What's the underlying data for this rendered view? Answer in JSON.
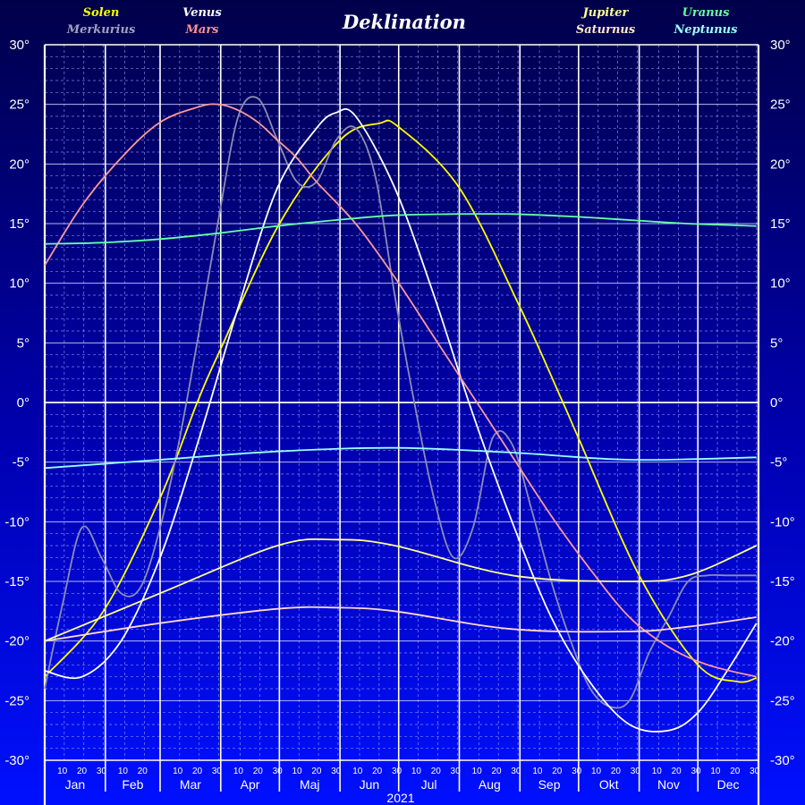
{
  "chart_data": {
    "type": "line",
    "title": "Deklination",
    "year_label": "2021",
    "ylim": [
      -30,
      30
    ],
    "y_ticks": [
      "30°",
      "25°",
      "20°",
      "15°",
      "10°",
      "5°",
      "0°",
      "-5°",
      "-10°",
      "-15°",
      "-20°",
      "-25°",
      "-30°"
    ],
    "months": [
      "Jan",
      "Feb",
      "Mar",
      "Apr",
      "Maj",
      "Jun",
      "Jul",
      "Aug",
      "Sep",
      "Okt",
      "Nov",
      "Dec"
    ],
    "day_ticks": [
      "10",
      "20",
      "30"
    ],
    "grid": true,
    "x_unit": "day of year",
    "legend": [
      {
        "name": "Solen",
        "color": "#ffff00"
      },
      {
        "name": "Merkurius",
        "color": "#a0a0c0"
      },
      {
        "name": "Venus",
        "color": "#ffffff"
      },
      {
        "name": "Mars",
        "color": "#ff9090"
      },
      {
        "name": "Jupiter",
        "color": "#ffff99"
      },
      {
        "name": "Saturnus",
        "color": "#ffe8c8"
      },
      {
        "name": "Uranus",
        "color": "#66ff99"
      },
      {
        "name": "Neptunus",
        "color": "#99ffff"
      }
    ],
    "series": [
      {
        "name": "Solen",
        "color": "#ffff00",
        "x": [
          1,
          31,
          60,
          79,
          91,
          121,
          152,
          172,
          182,
          213,
          244,
          266,
          274,
          305,
          335,
          355,
          365
        ],
        "y": [
          -23,
          -17.5,
          -8,
          0,
          4.5,
          15,
          22,
          23.4,
          23.1,
          18,
          8,
          0,
          -3,
          -14.5,
          -22,
          -23.4,
          -23.1
        ]
      },
      {
        "name": "Merkurius",
        "color": "#8c8cb4",
        "x": [
          1,
          10,
          20,
          30,
          40,
          50,
          60,
          70,
          80,
          90,
          100,
          110,
          120,
          130,
          140,
          150,
          160,
          170,
          180,
          190,
          200,
          210,
          220,
          230,
          240,
          250,
          260,
          270,
          280,
          290,
          300,
          310,
          320,
          330,
          340,
          350,
          360,
          365
        ],
        "y": [
          -24,
          -17,
          -10.5,
          -13,
          -16,
          -15.5,
          -10.5,
          -3,
          6,
          15.5,
          24,
          25.5,
          22,
          18.5,
          18.5,
          22,
          23,
          19,
          9,
          0,
          -8,
          -13,
          -10.5,
          -3,
          -3.5,
          -9,
          -15,
          -20,
          -24,
          -25.5,
          -25,
          -21,
          -18,
          -15,
          -14.5,
          -14.5,
          -14.5,
          -14.5
        ]
      },
      {
        "name": "Venus",
        "color": "#ffffff",
        "x": [
          1,
          20,
          40,
          60,
          80,
          100,
          120,
          140,
          150,
          160,
          180,
          200,
          220,
          240,
          260,
          280,
          300,
          320,
          335,
          350,
          365
        ],
        "y": [
          -22.5,
          -23,
          -20,
          -13,
          -3,
          8,
          18,
          23,
          24.3,
          24,
          18,
          9,
          -1,
          -10,
          -18,
          -23.5,
          -27,
          -27.5,
          -26,
          -22.5,
          -18.5
        ]
      },
      {
        "name": "Mars",
        "color": "#ff9999",
        "x": [
          1,
          20,
          40,
          60,
          80,
          90,
          100,
          110,
          120,
          130,
          140,
          160,
          180,
          200,
          220,
          240,
          260,
          280,
          300,
          320,
          340,
          365
        ],
        "y": [
          11.5,
          16.5,
          20.5,
          23.5,
          24.8,
          25,
          24.5,
          23.5,
          22,
          20.5,
          18.5,
          15,
          10.5,
          5.5,
          0.5,
          -4.5,
          -9.5,
          -14,
          -18,
          -20.5,
          -22,
          -23
        ]
      },
      {
        "name": "Jupiter",
        "color": "#ffff99",
        "x": [
          1,
          60,
          120,
          150,
          180,
          240,
          300,
          330,
          365
        ],
        "y": [
          -20,
          -16,
          -12,
          -11.5,
          -12,
          -14.5,
          -15,
          -14.5,
          -12
        ]
      },
      {
        "name": "Saturnus",
        "color": "#ffd8d0",
        "x": [
          1,
          60,
          120,
          150,
          180,
          240,
          300,
          330,
          365
        ],
        "y": [
          -20,
          -18.5,
          -17.3,
          -17.2,
          -17.5,
          -19,
          -19.2,
          -18.8,
          -18
        ]
      },
      {
        "name": "Uranus",
        "color": "#66ffaa",
        "x": [
          1,
          30,
          60,
          90,
          120,
          150,
          180,
          210,
          240,
          270,
          300,
          330,
          365
        ],
        "y": [
          13.3,
          13.4,
          13.7,
          14.2,
          14.8,
          15.3,
          15.7,
          15.8,
          15.8,
          15.6,
          15.3,
          15,
          14.8
        ]
      },
      {
        "name": "Neptunus",
        "color": "#99ffff",
        "x": [
          1,
          60,
          120,
          180,
          240,
          300,
          365
        ],
        "y": [
          -5.5,
          -4.8,
          -4.1,
          -3.8,
          -4.2,
          -4.8,
          -4.6
        ]
      }
    ]
  }
}
